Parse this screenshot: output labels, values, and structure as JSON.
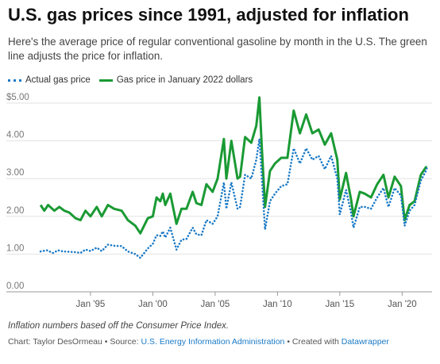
{
  "title": "U.S. gas prices since 1991, adjusted for inflation",
  "subtitle": "Here's the average price of regular conventional gasoline by month in the U.S. The green line adjusts the price for inflation.",
  "notes": "Inflation numbers based off the Consumer Price Index.",
  "credits": {
    "chart_by": "Chart: Taylor DesOrmeau",
    "sep1": " • Source: ",
    "source": "U.S. Energy Information Administration",
    "sep2": " • Created with ",
    "tool": "Datawrapper"
  },
  "colors": {
    "actual": "#1a7ac6",
    "adjusted": "#1a9a34",
    "grid": "#e2e2e2",
    "axis": "#999999"
  },
  "chart_data": {
    "type": "line",
    "xlabel": "",
    "ylabel": "",
    "ylim": [
      0,
      5
    ],
    "xlim": [
      1990.8,
      2022.4
    ],
    "y_ticks": [
      0,
      1,
      2,
      3,
      4,
      5
    ],
    "y_tick_labels": [
      "0.00",
      "1.00",
      "2.00",
      "3.00",
      "4.00",
      "$5.00"
    ],
    "x_ticks": [
      1995,
      2000,
      2005,
      2010,
      2015,
      2020
    ],
    "x_tick_labels": [
      "Jan '95",
      "Jan '00",
      "Jan '05",
      "Jan '10",
      "Jan '15",
      "Jan '20"
    ],
    "legend_position": "top-left",
    "grid": true,
    "series": [
      {
        "name": "Actual gas price",
        "style": "dotted",
        "color": "#1a7ac6",
        "points": [
          [
            1991.0,
            1.07
          ],
          [
            1991.5,
            1.1
          ],
          [
            1992.0,
            1.03
          ],
          [
            1992.4,
            1.1
          ],
          [
            1992.8,
            1.07
          ],
          [
            1993.3,
            1.06
          ],
          [
            1993.8,
            1.05
          ],
          [
            1994.2,
            1.03
          ],
          [
            1994.6,
            1.12
          ],
          [
            1995.0,
            1.08
          ],
          [
            1995.5,
            1.17
          ],
          [
            1995.9,
            1.08
          ],
          [
            1996.4,
            1.25
          ],
          [
            1996.9,
            1.22
          ],
          [
            1997.5,
            1.21
          ],
          [
            1998.0,
            1.07
          ],
          [
            1998.6,
            1.0
          ],
          [
            1999.0,
            0.9
          ],
          [
            1999.6,
            1.15
          ],
          [
            2000.0,
            1.27
          ],
          [
            2000.3,
            1.5
          ],
          [
            2000.6,
            1.48
          ],
          [
            2000.8,
            1.6
          ],
          [
            2001.0,
            1.44
          ],
          [
            2001.4,
            1.7
          ],
          [
            2001.9,
            1.12
          ],
          [
            2002.3,
            1.38
          ],
          [
            2002.7,
            1.4
          ],
          [
            2003.2,
            1.7
          ],
          [
            2003.5,
            1.52
          ],
          [
            2003.9,
            1.5
          ],
          [
            2004.3,
            1.9
          ],
          [
            2004.8,
            1.8
          ],
          [
            2005.2,
            2.0
          ],
          [
            2005.7,
            2.9
          ],
          [
            2005.9,
            2.2
          ],
          [
            2006.3,
            2.9
          ],
          [
            2006.8,
            2.2
          ],
          [
            2007.0,
            2.25
          ],
          [
            2007.4,
            3.1
          ],
          [
            2007.9,
            3.0
          ],
          [
            2008.3,
            3.5
          ],
          [
            2008.55,
            4.05
          ],
          [
            2008.75,
            3.0
          ],
          [
            2009.0,
            1.65
          ],
          [
            2009.4,
            2.4
          ],
          [
            2009.8,
            2.6
          ],
          [
            2010.3,
            2.8
          ],
          [
            2010.8,
            2.85
          ],
          [
            2011.3,
            3.8
          ],
          [
            2011.8,
            3.4
          ],
          [
            2012.3,
            3.8
          ],
          [
            2012.8,
            3.5
          ],
          [
            2013.3,
            3.6
          ],
          [
            2013.8,
            3.25
          ],
          [
            2014.3,
            3.6
          ],
          [
            2014.8,
            3.0
          ],
          [
            2015.0,
            2.05
          ],
          [
            2015.5,
            2.7
          ],
          [
            2015.9,
            2.1
          ],
          [
            2016.1,
            1.7
          ],
          [
            2016.6,
            2.25
          ],
          [
            2017.0,
            2.25
          ],
          [
            2017.5,
            2.2
          ],
          [
            2018.0,
            2.5
          ],
          [
            2018.5,
            2.75
          ],
          [
            2018.9,
            2.25
          ],
          [
            2019.4,
            2.75
          ],
          [
            2019.9,
            2.55
          ],
          [
            2020.2,
            1.75
          ],
          [
            2020.6,
            2.15
          ],
          [
            2021.0,
            2.3
          ],
          [
            2021.5,
            2.95
          ],
          [
            2021.9,
            3.2
          ],
          [
            2022.0,
            3.3
          ]
        ]
      },
      {
        "name": "Gas price in January 2022 dollars",
        "style": "solid",
        "color": "#1a9a34",
        "points": [
          [
            1991.0,
            2.3
          ],
          [
            1991.3,
            2.15
          ],
          [
            1991.6,
            2.3
          ],
          [
            1992.1,
            2.15
          ],
          [
            1992.5,
            2.25
          ],
          [
            1992.9,
            2.15
          ],
          [
            1993.3,
            2.1
          ],
          [
            1993.8,
            1.95
          ],
          [
            1994.2,
            1.9
          ],
          [
            1994.6,
            2.15
          ],
          [
            1995.0,
            2.0
          ],
          [
            1995.5,
            2.25
          ],
          [
            1995.9,
            2.0
          ],
          [
            1996.4,
            2.3
          ],
          [
            1996.9,
            2.2
          ],
          [
            1997.5,
            2.15
          ],
          [
            1998.0,
            1.9
          ],
          [
            1998.6,
            1.75
          ],
          [
            1999.0,
            1.55
          ],
          [
            1999.6,
            1.95
          ],
          [
            2000.0,
            2.0
          ],
          [
            2000.3,
            2.5
          ],
          [
            2000.6,
            2.4
          ],
          [
            2000.8,
            2.6
          ],
          [
            2001.0,
            2.3
          ],
          [
            2001.4,
            2.6
          ],
          [
            2001.9,
            1.8
          ],
          [
            2002.3,
            2.2
          ],
          [
            2002.7,
            2.2
          ],
          [
            2003.2,
            2.65
          ],
          [
            2003.5,
            2.35
          ],
          [
            2003.9,
            2.3
          ],
          [
            2004.3,
            2.85
          ],
          [
            2004.8,
            2.65
          ],
          [
            2005.2,
            3.0
          ],
          [
            2005.7,
            4.05
          ],
          [
            2005.9,
            3.0
          ],
          [
            2006.3,
            4.0
          ],
          [
            2006.8,
            3.0
          ],
          [
            2007.0,
            3.05
          ],
          [
            2007.4,
            4.1
          ],
          [
            2007.9,
            3.95
          ],
          [
            2008.3,
            4.4
          ],
          [
            2008.55,
            5.15
          ],
          [
            2008.75,
            3.8
          ],
          [
            2009.0,
            2.25
          ],
          [
            2009.4,
            3.2
          ],
          [
            2009.8,
            3.4
          ],
          [
            2010.3,
            3.55
          ],
          [
            2010.8,
            3.55
          ],
          [
            2011.3,
            4.8
          ],
          [
            2011.8,
            4.2
          ],
          [
            2012.3,
            4.7
          ],
          [
            2012.8,
            4.2
          ],
          [
            2013.3,
            4.3
          ],
          [
            2013.8,
            3.9
          ],
          [
            2014.3,
            4.2
          ],
          [
            2014.8,
            3.5
          ],
          [
            2015.0,
            2.45
          ],
          [
            2015.5,
            3.15
          ],
          [
            2015.9,
            2.45
          ],
          [
            2016.1,
            2.0
          ],
          [
            2016.6,
            2.65
          ],
          [
            2017.0,
            2.6
          ],
          [
            2017.5,
            2.5
          ],
          [
            2018.0,
            2.85
          ],
          [
            2018.5,
            3.1
          ],
          [
            2018.9,
            2.5
          ],
          [
            2019.4,
            3.05
          ],
          [
            2019.9,
            2.8
          ],
          [
            2020.2,
            1.9
          ],
          [
            2020.6,
            2.3
          ],
          [
            2021.0,
            2.4
          ],
          [
            2021.5,
            3.1
          ],
          [
            2021.9,
            3.3
          ],
          [
            2022.0,
            3.3
          ]
        ]
      }
    ]
  }
}
